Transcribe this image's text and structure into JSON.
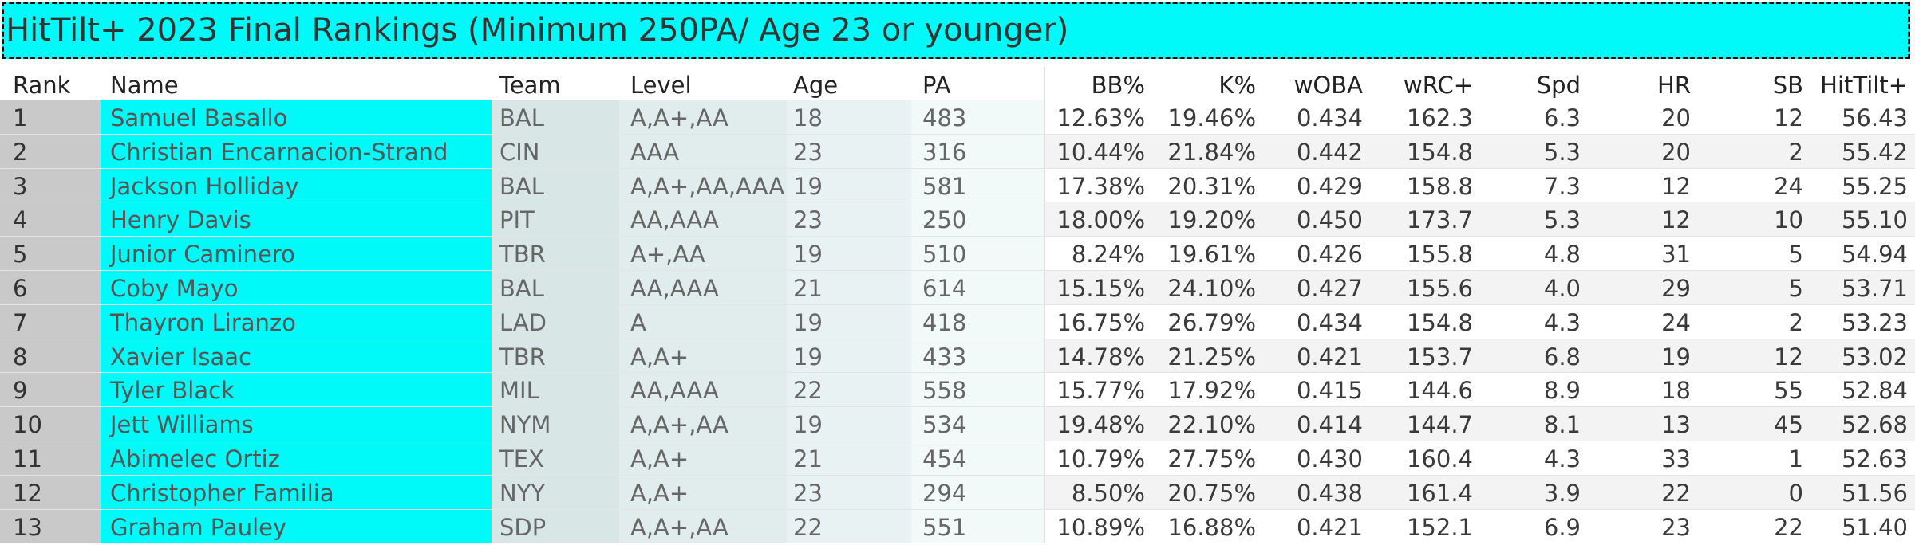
{
  "title": "HitTilt+ 2023 Final Rankings (Minimum 250PA/ Age 23 or younger)",
  "columns": [
    "Rank",
    "Name",
    "Team",
    "Level",
    "Age",
    "PA",
    "BB%",
    "K%",
    "wOBA",
    "wRC+",
    "Spd",
    "HR",
    "SB",
    "HitTilt+"
  ],
  "colors": {
    "title_bg": "#00FAFA",
    "name_bg": "#00FAFA",
    "rank_bg": "#C9C9C9"
  },
  "rows": [
    {
      "rank": "1",
      "name": "Samuel Basallo",
      "team": "BAL",
      "level": "A,A+,AA",
      "age": "18",
      "pa": "483",
      "bb": "12.63%",
      "k": "19.46%",
      "woba": "0.434",
      "wrc": "162.3",
      "spd": "6.3",
      "hr": "20",
      "sb": "12",
      "hittilt": "56.43"
    },
    {
      "rank": "2",
      "name": "Christian Encarnacion-Strand",
      "team": "CIN",
      "level": "AAA",
      "age": "23",
      "pa": "316",
      "bb": "10.44%",
      "k": "21.84%",
      "woba": "0.442",
      "wrc": "154.8",
      "spd": "5.3",
      "hr": "20",
      "sb": "2",
      "hittilt": "55.42"
    },
    {
      "rank": "3",
      "name": "Jackson Holliday",
      "team": "BAL",
      "level": "A,A+,AA,AAA",
      "age": "19",
      "pa": "581",
      "bb": "17.38%",
      "k": "20.31%",
      "woba": "0.429",
      "wrc": "158.8",
      "spd": "7.3",
      "hr": "12",
      "sb": "24",
      "hittilt": "55.25"
    },
    {
      "rank": "4",
      "name": "Henry Davis",
      "team": "PIT",
      "level": "AA,AAA",
      "age": "23",
      "pa": "250",
      "bb": "18.00%",
      "k": "19.20%",
      "woba": "0.450",
      "wrc": "173.7",
      "spd": "5.3",
      "hr": "12",
      "sb": "10",
      "hittilt": "55.10"
    },
    {
      "rank": "5",
      "name": "Junior Caminero",
      "team": "TBR",
      "level": "A+,AA",
      "age": "19",
      "pa": "510",
      "bb": "8.24%",
      "k": "19.61%",
      "woba": "0.426",
      "wrc": "155.8",
      "spd": "4.8",
      "hr": "31",
      "sb": "5",
      "hittilt": "54.94"
    },
    {
      "rank": "6",
      "name": "Coby Mayo",
      "team": "BAL",
      "level": "AA,AAA",
      "age": "21",
      "pa": "614",
      "bb": "15.15%",
      "k": "24.10%",
      "woba": "0.427",
      "wrc": "155.6",
      "spd": "4.0",
      "hr": "29",
      "sb": "5",
      "hittilt": "53.71"
    },
    {
      "rank": "7",
      "name": "Thayron Liranzo",
      "team": "LAD",
      "level": "A",
      "age": "19",
      "pa": "418",
      "bb": "16.75%",
      "k": "26.79%",
      "woba": "0.434",
      "wrc": "154.8",
      "spd": "4.3",
      "hr": "24",
      "sb": "2",
      "hittilt": "53.23"
    },
    {
      "rank": "8",
      "name": "Xavier Isaac",
      "team": "TBR",
      "level": "A,A+",
      "age": "19",
      "pa": "433",
      "bb": "14.78%",
      "k": "21.25%",
      "woba": "0.421",
      "wrc": "153.7",
      "spd": "6.8",
      "hr": "19",
      "sb": "12",
      "hittilt": "53.02"
    },
    {
      "rank": "9",
      "name": "Tyler Black",
      "team": "MIL",
      "level": "AA,AAA",
      "age": "22",
      "pa": "558",
      "bb": "15.77%",
      "k": "17.92%",
      "woba": "0.415",
      "wrc": "144.6",
      "spd": "8.9",
      "hr": "18",
      "sb": "55",
      "hittilt": "52.84"
    },
    {
      "rank": "10",
      "name": "Jett Williams",
      "team": "NYM",
      "level": "A,A+,AA",
      "age": "19",
      "pa": "534",
      "bb": "19.48%",
      "k": "22.10%",
      "woba": "0.414",
      "wrc": "144.7",
      "spd": "8.1",
      "hr": "13",
      "sb": "45",
      "hittilt": "52.68"
    },
    {
      "rank": "11",
      "name": "Abimelec Ortiz",
      "team": "TEX",
      "level": "A,A+",
      "age": "21",
      "pa": "454",
      "bb": "10.79%",
      "k": "27.75%",
      "woba": "0.430",
      "wrc": "160.4",
      "spd": "4.3",
      "hr": "33",
      "sb": "1",
      "hittilt": "52.63"
    },
    {
      "rank": "12",
      "name": "Christopher Familia",
      "team": "NYY",
      "level": "A,A+",
      "age": "23",
      "pa": "294",
      "bb": "8.50%",
      "k": "20.75%",
      "woba": "0.438",
      "wrc": "161.4",
      "spd": "3.9",
      "hr": "22",
      "sb": "0",
      "hittilt": "51.56"
    },
    {
      "rank": "13",
      "name": "Graham Pauley",
      "team": "SDP",
      "level": "A,A+,AA",
      "age": "22",
      "pa": "551",
      "bb": "10.89%",
      "k": "16.88%",
      "woba": "0.421",
      "wrc": "152.1",
      "spd": "6.9",
      "hr": "23",
      "sb": "22",
      "hittilt": "51.40"
    }
  ]
}
